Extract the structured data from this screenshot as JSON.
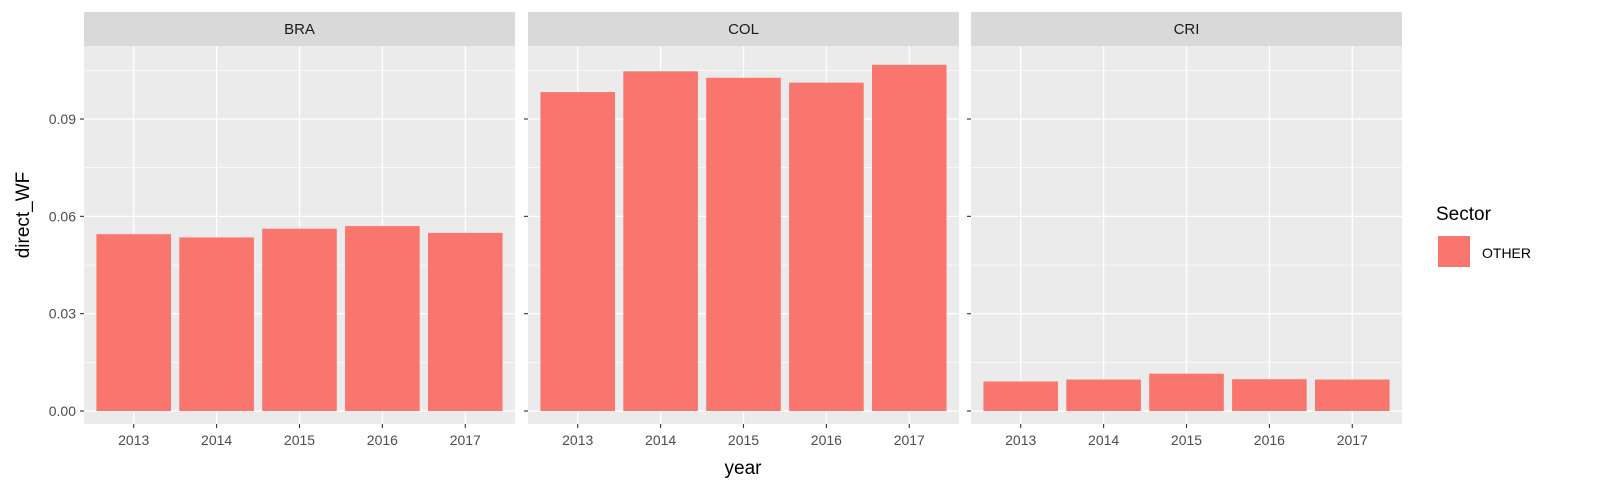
{
  "chart_data": {
    "type": "bar",
    "xlabel": "year",
    "ylabel": "direct_WF",
    "ylim": [
      -0.004,
      0.1125
    ],
    "y_ticks": [
      0.0,
      0.03,
      0.06,
      0.09
    ],
    "y_tick_labels": [
      "0.00",
      "0.03",
      "0.06",
      "0.09"
    ],
    "categories": [
      "2013",
      "2014",
      "2015",
      "2016",
      "2017"
    ],
    "facets": [
      {
        "label": "BRA",
        "values": [
          0.0545,
          0.0535,
          0.0562,
          0.057,
          0.0549
        ]
      },
      {
        "label": "COL",
        "values": [
          0.0983,
          0.1047,
          0.1027,
          0.1012,
          0.1067
        ]
      },
      {
        "label": "CRI",
        "values": [
          0.0091,
          0.0097,
          0.0115,
          0.0098,
          0.0097
        ]
      }
    ],
    "grid": true,
    "legend": {
      "title": "Sector",
      "placement": "right",
      "items": [
        {
          "label": "OTHER",
          "color": "#F8766D"
        }
      ]
    },
    "colors": {
      "bar": "#F8766D",
      "panel_bg": "#EBEBEB",
      "strip_bg": "#D9D9D9",
      "grid": "#FFFFFF"
    }
  }
}
